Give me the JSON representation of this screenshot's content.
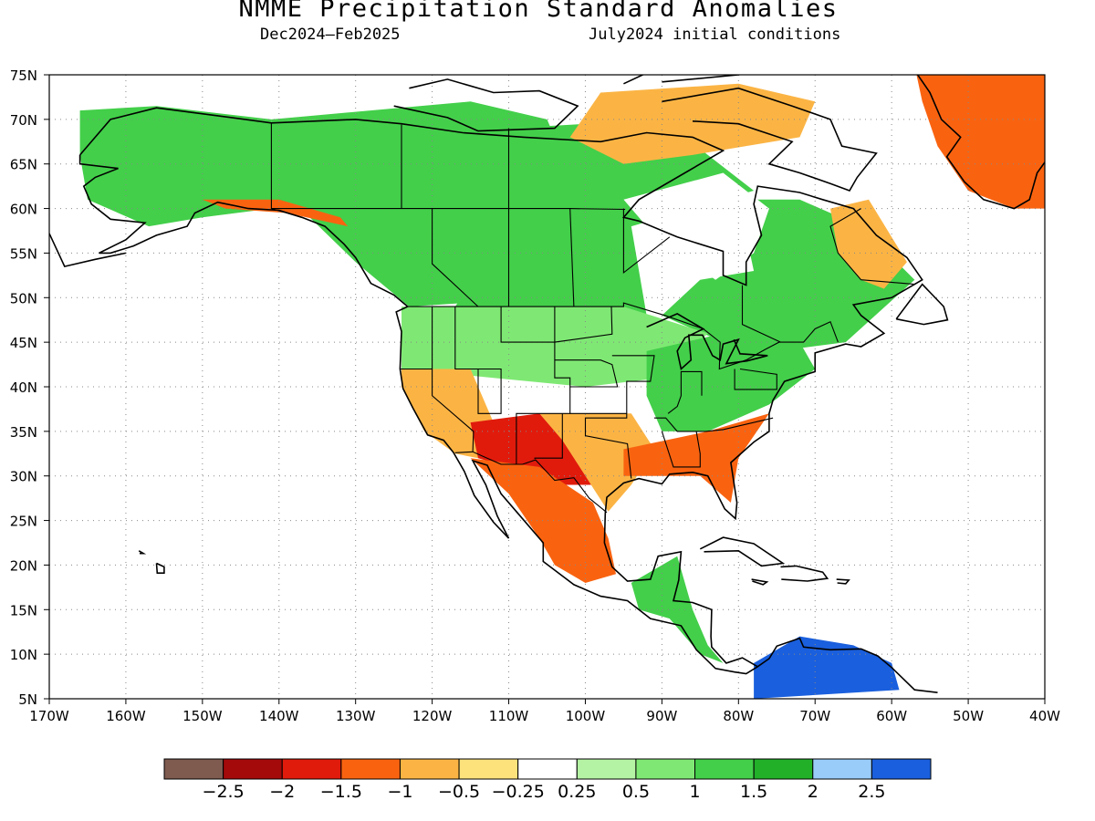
{
  "title": "NMME Precipitation Standard Anomalies",
  "period": "Dec2024–Feb2025",
  "init": "July2024 initial conditions",
  "map": {
    "lon_min": -170,
    "lon_max": -40,
    "lat_min": 5,
    "lat_max": 75,
    "lat_labels": [
      "5N",
      "10N",
      "15N",
      "20N",
      "25N",
      "30N",
      "35N",
      "40N",
      "45N",
      "50N",
      "55N",
      "60N",
      "65N",
      "70N",
      "75N"
    ],
    "lon_labels": [
      "170W",
      "160W",
      "150W",
      "140W",
      "130W",
      "120W",
      "110W",
      "100W",
      "90W",
      "80W",
      "70W",
      "60W",
      "50W",
      "40W"
    ],
    "grid": true,
    "regions": [
      {
        "name": "alaska",
        "value": 1.2
      },
      {
        "name": "canada-west",
        "value": 1.2
      },
      {
        "name": "canada-central",
        "value": 1.3
      },
      {
        "name": "canada-east",
        "value": 1.1
      },
      {
        "name": "hudson-bay",
        "value": 0
      },
      {
        "name": "northern-us",
        "value": 0.8
      },
      {
        "name": "great-lakes-ohio",
        "value": 1.3
      },
      {
        "name": "southwest-us",
        "value": -1.6
      },
      {
        "name": "southern-plains",
        "value": -0.9
      },
      {
        "name": "southeast-us",
        "value": -1.2
      },
      {
        "name": "california",
        "value": -0.8
      },
      {
        "name": "mexico",
        "value": -1.3
      },
      {
        "name": "central-america",
        "value": 1.0
      },
      {
        "name": "northern-south-america",
        "value": 2.6
      },
      {
        "name": "greenland",
        "value": -1.4
      },
      {
        "name": "arctic-islands",
        "value": -0.7
      },
      {
        "name": "labrador",
        "value": -0.9
      },
      {
        "name": "gulf-alaska-coast",
        "value": -1.5
      }
    ]
  },
  "colorbar": {
    "colors": [
      "#7e5a4f",
      "#a40a0a",
      "#e01b0c",
      "#f96310",
      "#fbb444",
      "#fde27c",
      "#ffffff",
      "#b4f3a3",
      "#7fe874",
      "#43cf4a",
      "#22b029",
      "#99ccf9",
      "#1a5fdd"
    ],
    "labels": [
      "−2.5",
      "−2",
      "−1.5",
      "−1",
      "−0.5",
      "−0.25",
      "0.25",
      "0.5",
      "1",
      "1.5",
      "2",
      "2.5"
    ]
  }
}
